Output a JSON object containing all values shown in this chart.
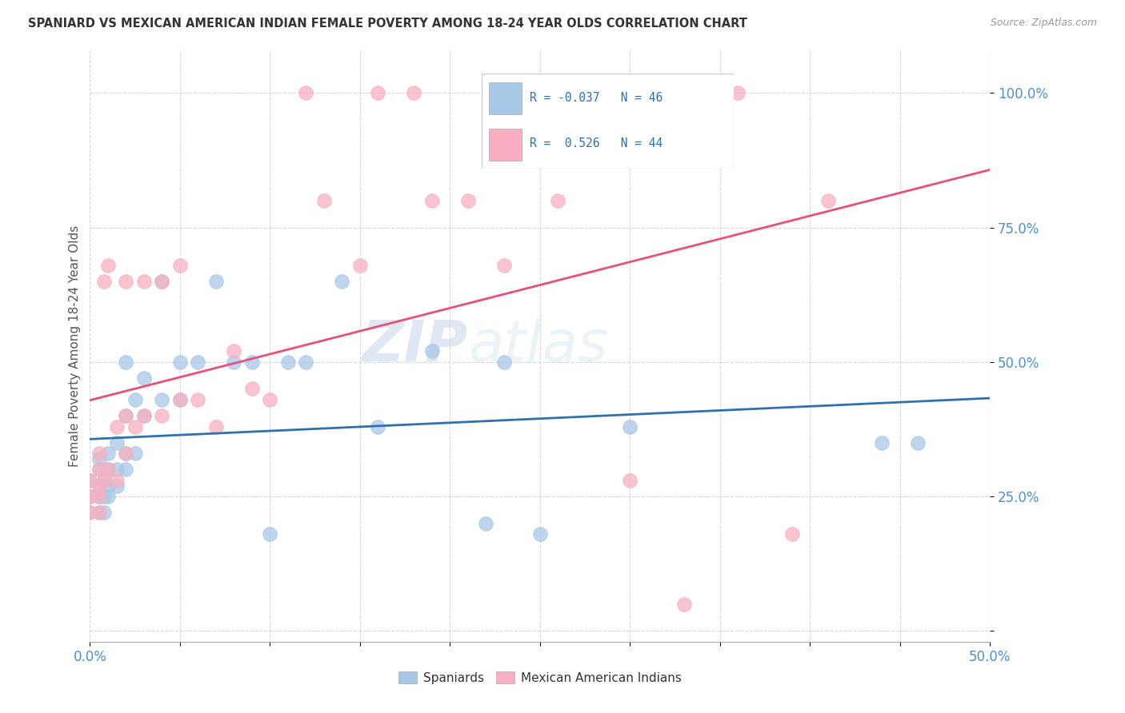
{
  "title": "SPANIARD VS MEXICAN AMERICAN INDIAN FEMALE POVERTY AMONG 18-24 YEAR OLDS CORRELATION CHART",
  "source": "Source: ZipAtlas.com",
  "ylabel": "Female Poverty Among 18-24 Year Olds",
  "xlim": [
    0.0,
    0.5
  ],
  "ylim": [
    -0.02,
    1.08
  ],
  "yticks": [
    0.0,
    0.25,
    0.5,
    0.75,
    1.0
  ],
  "yticklabels": [
    "",
    "25.0%",
    "50.0%",
    "75.0%",
    "100.0%"
  ],
  "xticks": [
    0.0,
    0.05,
    0.1,
    0.15,
    0.2,
    0.25,
    0.3,
    0.35,
    0.4,
    0.45,
    0.5
  ],
  "xticklabels": [
    "0.0%",
    "",
    "",
    "",
    "",
    "",
    "",
    "",
    "",
    "",
    "50.0%"
  ],
  "spaniards_R": -0.037,
  "spaniards_N": 46,
  "mexican_R": 0.526,
  "mexican_N": 44,
  "spaniards_color": "#a8c8e8",
  "mexican_color": "#f8b0c0",
  "spaniards_line_color": "#3070b0",
  "mexican_line_color": "#e8507a",
  "watermark_zip": "ZIP",
  "watermark_atlas": "atlas",
  "background_color": "#ffffff",
  "spaniards_x": [
    0.0,
    0.0,
    0.0,
    0.005,
    0.005,
    0.005,
    0.005,
    0.005,
    0.008,
    0.008,
    0.008,
    0.01,
    0.01,
    0.01,
    0.01,
    0.015,
    0.015,
    0.015,
    0.02,
    0.02,
    0.02,
    0.02,
    0.025,
    0.025,
    0.03,
    0.03,
    0.04,
    0.04,
    0.05,
    0.05,
    0.06,
    0.07,
    0.08,
    0.09,
    0.1,
    0.11,
    0.12,
    0.14,
    0.16,
    0.19,
    0.22,
    0.23,
    0.25,
    0.3,
    0.44,
    0.46
  ],
  "spaniards_y": [
    0.22,
    0.25,
    0.28,
    0.22,
    0.25,
    0.27,
    0.3,
    0.32,
    0.22,
    0.25,
    0.28,
    0.25,
    0.27,
    0.3,
    0.33,
    0.27,
    0.3,
    0.35,
    0.3,
    0.33,
    0.4,
    0.5,
    0.33,
    0.43,
    0.4,
    0.47,
    0.43,
    0.65,
    0.43,
    0.5,
    0.5,
    0.65,
    0.5,
    0.5,
    0.18,
    0.5,
    0.5,
    0.65,
    0.38,
    0.52,
    0.2,
    0.5,
    0.18,
    0.38,
    0.35,
    0.35
  ],
  "mexican_x": [
    0.0,
    0.0,
    0.0,
    0.005,
    0.005,
    0.005,
    0.005,
    0.005,
    0.008,
    0.008,
    0.01,
    0.01,
    0.015,
    0.015,
    0.02,
    0.02,
    0.02,
    0.025,
    0.03,
    0.03,
    0.04,
    0.04,
    0.05,
    0.05,
    0.06,
    0.07,
    0.08,
    0.09,
    0.1,
    0.12,
    0.13,
    0.15,
    0.16,
    0.18,
    0.19,
    0.21,
    0.23,
    0.26,
    0.28,
    0.3,
    0.33,
    0.36,
    0.39,
    0.41
  ],
  "mexican_y": [
    0.22,
    0.25,
    0.28,
    0.22,
    0.25,
    0.27,
    0.3,
    0.33,
    0.28,
    0.65,
    0.3,
    0.68,
    0.28,
    0.38,
    0.33,
    0.4,
    0.65,
    0.38,
    0.4,
    0.65,
    0.4,
    0.65,
    0.43,
    0.68,
    0.43,
    0.38,
    0.52,
    0.45,
    0.43,
    1.0,
    0.8,
    0.68,
    1.0,
    1.0,
    0.8,
    0.8,
    0.68,
    0.8,
    1.0,
    0.28,
    0.05,
    1.0,
    0.18,
    0.8
  ]
}
